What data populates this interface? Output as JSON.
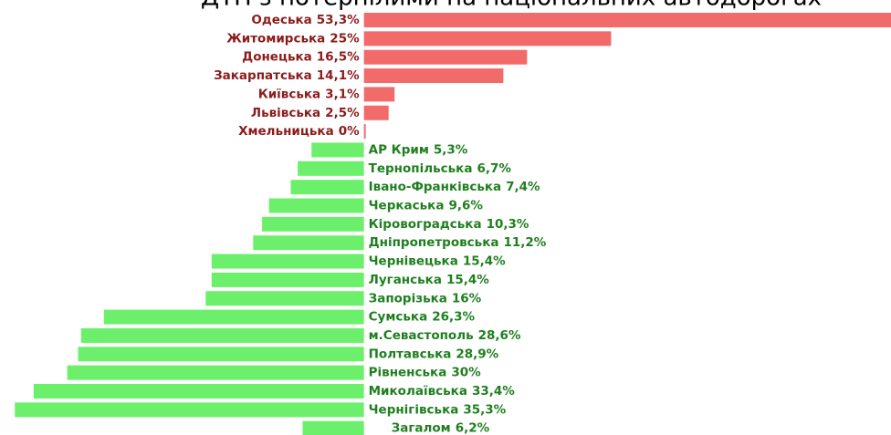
{
  "chart_data": {
    "type": "bar",
    "orientation": "horizontal",
    "title": "ДТП з потерпілими на національних автодорогах",
    "categories": [
      "Одеська",
      "Житомирська",
      "Донецька",
      "Закарпатська",
      "Київська",
      "Львівська",
      "Хмельницька",
      "АР Крим",
      "Тернопільська",
      "Івано-Франківська",
      "Черкаська",
      "Кіровоградська",
      "Дніпропетровська",
      "Чернівецька",
      "Луганська",
      "Запорізька",
      "Сумська",
      "м.Севастополь",
      "Полтавська",
      "Рівненська",
      "Миколаївська",
      "Чернігівська",
      "Загалом"
    ],
    "values": [
      53.3,
      25,
      16.5,
      14.1,
      3.1,
      2.5,
      0,
      -5.3,
      -6.7,
      -7.4,
      -9.6,
      -10.3,
      -11.2,
      -15.4,
      -15.4,
      -16,
      -26.3,
      -28.6,
      -28.9,
      -30,
      -33.4,
      -35.3,
      -6.2
    ],
    "value_labels": [
      "53,3%",
      "25%",
      "16,5%",
      "14,1%",
      "3,1%",
      "2,5%",
      "0%",
      "5,3%",
      "6,7%",
      "7,4%",
      "9,6%",
      "10,3%",
      "11,2%",
      "15,4%",
      "15,4%",
      "16%",
      "26,3%",
      "28,6%",
      "28,9%",
      "30%",
      "33,4%",
      "35,3%",
      "6,2%"
    ],
    "positive_color": "#f26b6b",
    "negative_color": "#6cf06c",
    "positive_label_color": "#8b1c1c",
    "negative_label_color": "#1f7f1f",
    "xlim": [
      -36.8,
      53.3
    ]
  }
}
